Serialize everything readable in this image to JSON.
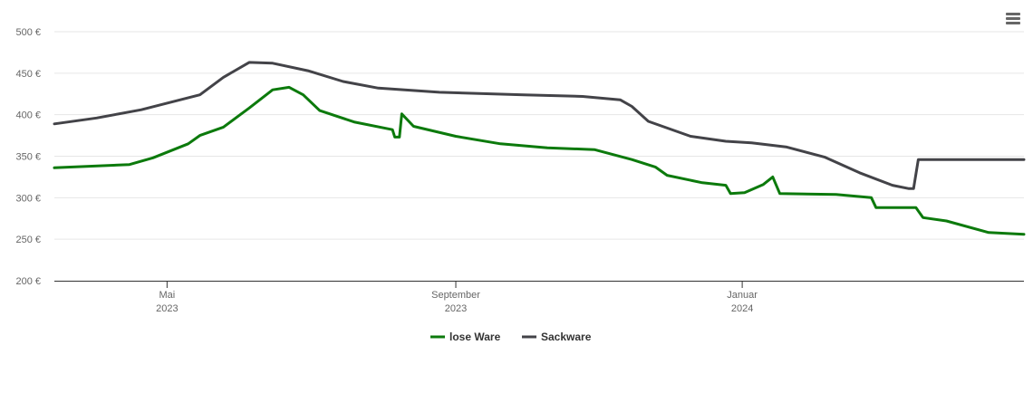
{
  "menu": {
    "icon": "hamburger-menu-icon"
  },
  "chart_data": {
    "type": "line",
    "title": "",
    "xlabel": "",
    "ylabel": "",
    "ylim": [
      200,
      500
    ],
    "y_ticks": [
      200,
      250,
      300,
      350,
      400,
      450,
      500
    ],
    "y_tick_suffix": " €",
    "x_range": [
      "2023-03-14",
      "2024-04-30"
    ],
    "x_ticks": [
      {
        "date": "2023-05-01",
        "line1": "Mai",
        "line2": "2023"
      },
      {
        "date": "2023-09-01",
        "line1": "September",
        "line2": "2023"
      },
      {
        "date": "2024-01-01",
        "line1": "Januar",
        "line2": "2024"
      }
    ],
    "grid": true,
    "legend_position": "bottom-center",
    "series": [
      {
        "name": "lose Ware",
        "color": "#0c7a0c",
        "points": [
          [
            "2023-03-14",
            336
          ],
          [
            "2023-04-15",
            340
          ],
          [
            "2023-04-25",
            348
          ],
          [
            "2023-05-10",
            365
          ],
          [
            "2023-05-15",
            375
          ],
          [
            "2023-05-25",
            385
          ],
          [
            "2023-06-05",
            408
          ],
          [
            "2023-06-15",
            430
          ],
          [
            "2023-06-22",
            433
          ],
          [
            "2023-06-28",
            424
          ],
          [
            "2023-07-05",
            405
          ],
          [
            "2023-07-20",
            391
          ],
          [
            "2023-08-05",
            382
          ],
          [
            "2023-08-06",
            373
          ],
          [
            "2023-08-08",
            373
          ],
          [
            "2023-08-09",
            401
          ],
          [
            "2023-08-14",
            386
          ],
          [
            "2023-09-01",
            374
          ],
          [
            "2023-09-20",
            365
          ],
          [
            "2023-10-10",
            360
          ],
          [
            "2023-10-30",
            358
          ],
          [
            "2023-11-15",
            346
          ],
          [
            "2023-11-25",
            337
          ],
          [
            "2023-11-30",
            327
          ],
          [
            "2023-12-15",
            318
          ],
          [
            "2023-12-25",
            315
          ],
          [
            "2023-12-27",
            305
          ],
          [
            "2024-01-02",
            306
          ],
          [
            "2024-01-10",
            316
          ],
          [
            "2024-01-14",
            325
          ],
          [
            "2024-01-17",
            305
          ],
          [
            "2024-02-10",
            304
          ],
          [
            "2024-02-25",
            300
          ],
          [
            "2024-02-27",
            288
          ],
          [
            "2024-03-15",
            288
          ],
          [
            "2024-03-18",
            276
          ],
          [
            "2024-03-28",
            272
          ],
          [
            "2024-04-15",
            258
          ],
          [
            "2024-04-30",
            256
          ]
        ]
      },
      {
        "name": "Sackware",
        "color": "#434348",
        "points": [
          [
            "2023-03-14",
            389
          ],
          [
            "2023-04-01",
            396
          ],
          [
            "2023-04-20",
            406
          ],
          [
            "2023-05-15",
            424
          ],
          [
            "2023-05-25",
            445
          ],
          [
            "2023-06-05",
            463
          ],
          [
            "2023-06-15",
            462
          ],
          [
            "2023-06-30",
            453
          ],
          [
            "2023-07-15",
            440
          ],
          [
            "2023-07-30",
            432
          ],
          [
            "2023-08-25",
            427
          ],
          [
            "2023-09-30",
            424
          ],
          [
            "2023-10-25",
            422
          ],
          [
            "2023-11-10",
            418
          ],
          [
            "2023-11-15",
            410
          ],
          [
            "2023-11-22",
            392
          ],
          [
            "2023-12-10",
            374
          ],
          [
            "2023-12-25",
            368
          ],
          [
            "2024-01-05",
            366
          ],
          [
            "2024-01-20",
            361
          ],
          [
            "2024-02-05",
            349
          ],
          [
            "2024-02-20",
            330
          ],
          [
            "2024-03-05",
            315
          ],
          [
            "2024-03-12",
            311
          ],
          [
            "2024-03-14",
            311
          ],
          [
            "2024-03-16",
            346
          ],
          [
            "2024-04-30",
            346
          ]
        ]
      }
    ]
  }
}
